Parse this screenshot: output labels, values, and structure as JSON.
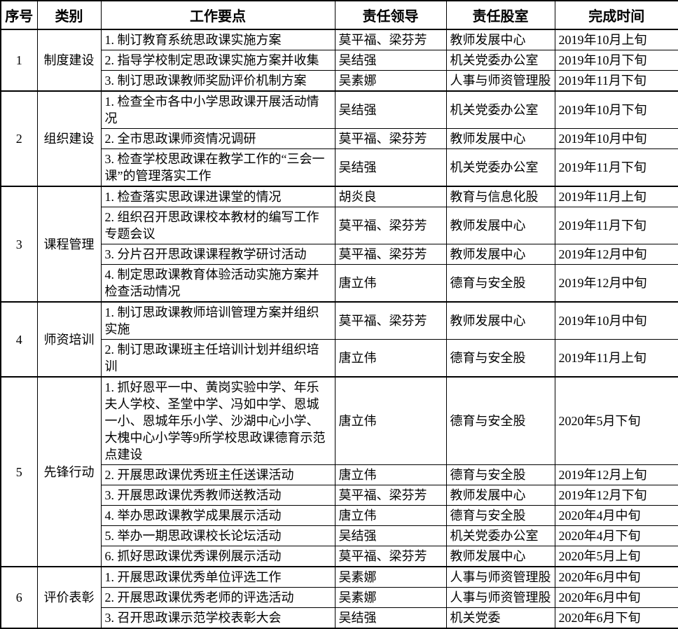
{
  "colors": {
    "border": "#000000",
    "background": "#ffffff",
    "text": "#000000"
  },
  "table": {
    "columns": [
      {
        "key": "index",
        "label": "序号"
      },
      {
        "key": "category",
        "label": "类别"
      },
      {
        "key": "task",
        "label": "工作要点"
      },
      {
        "key": "leader",
        "label": "责任领导"
      },
      {
        "key": "dept",
        "label": "责任股室"
      },
      {
        "key": "time",
        "label": "完成时间"
      }
    ],
    "categories": [
      {
        "index": "1",
        "name": "制度建设",
        "tasks": [
          {
            "task": "1. 制订教育系统思政课实施方案",
            "leader": "莫平福、梁芬芳",
            "dept": "教师发展中心",
            "time": "2019年10月上旬"
          },
          {
            "task": "2. 指导学校制定思政课实施方案并收集",
            "leader": "吴结强",
            "dept": "机关党委办公室",
            "time": "2019年10月下旬"
          },
          {
            "task": "3. 制订思政课教师奖励评价机制方案",
            "leader": "吴素娜",
            "dept": "人事与师资管理股",
            "time": "2019年11月下旬"
          }
        ]
      },
      {
        "index": "2",
        "name": "组织建设",
        "tasks": [
          {
            "task": "1. 检查全市各中小学思政课开展活动情况",
            "leader": "吴结强",
            "dept": "机关党委办公室",
            "time": "2019年10月下旬"
          },
          {
            "task": "2. 全市思政课师资情况调研",
            "leader": "莫平福、梁芬芳",
            "dept": "教师发展中心",
            "time": "2019年10月中旬"
          },
          {
            "task": "3. 检查学校思政课在教学工作的“三会一课”的管理落实工作",
            "leader": "吴结强",
            "dept": "机关党委办公室",
            "time": "2019年11月下旬"
          }
        ]
      },
      {
        "index": "3",
        "name": "课程管理",
        "tasks": [
          {
            "task": "1. 检查落实思政课进课堂的情况",
            "leader": "胡炎良",
            "dept": "教育与信息化股",
            "time": "2019年11月上旬"
          },
          {
            "task": "2. 组织召开思政课校本教材的编写工作专题会议",
            "leader": "莫平福、梁芬芳",
            "dept": "教师发展中心",
            "time": "2019年11月下旬"
          },
          {
            "task": "3. 分片召开思政课课程教学研讨活动",
            "leader": "莫平福、梁芬芳",
            "dept": "教师发展中心",
            "time": "2019年12月中旬"
          },
          {
            "task": "4. 制定思政课教育体验活动实施方案并检查活动情况",
            "leader": "唐立伟",
            "dept": "德育与安全股",
            "time": "2019年12月中旬"
          }
        ]
      },
      {
        "index": "4",
        "name": "师资培训",
        "tasks": [
          {
            "task": "1. 制订思政课教师培训管理方案并组织实施",
            "leader": "莫平福、梁芬芳",
            "dept": "教师发展中心",
            "time": "2019年10月中旬"
          },
          {
            "task": "2. 制订思政课班主任培训计划并组织培训",
            "leader": "唐立伟",
            "dept": "德育与安全股",
            "time": "2019年11月上旬"
          }
        ]
      },
      {
        "index": "5",
        "name": "先锋行动",
        "tasks": [
          {
            "task": "1. 抓好恩平一中、黄岗实验中学、年乐夫人学校、圣堂中学、冯如中学、恩城一小、恩城年乐小学、沙湖中心小学、大槐中心小学等9所学校思政课德育示范点建设",
            "leader": "唐立伟",
            "dept": "德育与安全股",
            "time": "2020年5月下旬"
          },
          {
            "task": "2. 开展思政课优秀班主任送课活动",
            "leader": "唐立伟",
            "dept": "德育与安全股",
            "time": "2019年12月上旬"
          },
          {
            "task": "3. 开展思政课优秀教师送教活动",
            "leader": "莫平福、梁芬芳",
            "dept": "教师发展中心",
            "time": "2019年12月下旬"
          },
          {
            "task": "4. 举办思政课教学成果展示活动",
            "leader": "唐立伟",
            "dept": "德育与安全股",
            "time": "2020年4月中旬"
          },
          {
            "task": "5. 举办一期思政课校长论坛活动",
            "leader": "吴结强",
            "dept": "机关党委办公室",
            "time": "2020年4月下旬"
          },
          {
            "task": "6. 抓好思政课优秀课例展示活动",
            "leader": "莫平福、梁芬芳",
            "dept": "教师发展中心",
            "time": "2020年5月上旬"
          }
        ]
      },
      {
        "index": "6",
        "name": "评价表彰",
        "tasks": [
          {
            "task": "1. 开展思政课优秀单位评选工作",
            "leader": "吴素娜",
            "dept": "人事与师资管理股",
            "time": "2020年6月中旬"
          },
          {
            "task": "2. 开展思政课优秀老师的评选活动",
            "leader": "吴素娜",
            "dept": "人事与师资管理股",
            "time": "2020年6月中旬"
          },
          {
            "task": "3. 召开思政课示范学校表彰大会",
            "leader": "吴结强",
            "dept": "机关党委",
            "time": "2020年6月下旬"
          }
        ]
      }
    ]
  }
}
